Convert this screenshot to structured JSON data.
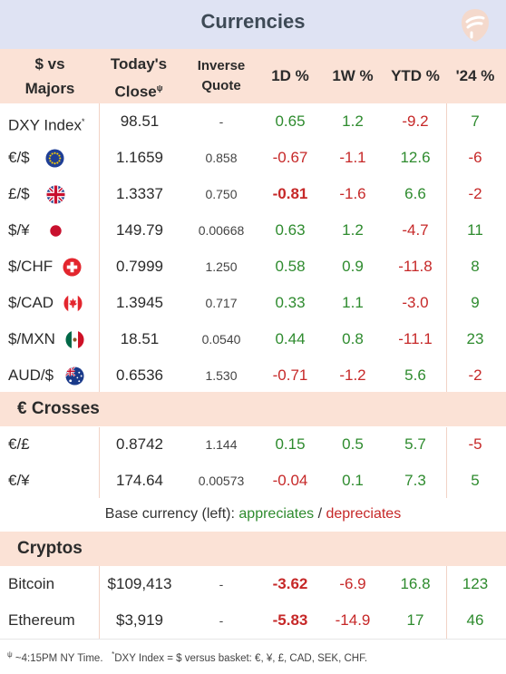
{
  "title": "Currencies",
  "header": {
    "pair_line1": "$ vs",
    "pair_line2": "Majors",
    "close_line1": "Today's",
    "close_line2": "Close",
    "close_sup": "ψ",
    "inverse_line1": "Inverse",
    "inverse_line2": "Quote",
    "d1": "1D %",
    "w1": "1W %",
    "ytd": "YTD %",
    "y24": "'24 %"
  },
  "majors": [
    {
      "name": "DXY Index",
      "sup": "*",
      "close": "98.51",
      "inverse": "-",
      "d1": "0.65",
      "w1": "1.2",
      "ytd": "-9.2",
      "y24": "7",
      "flag": ""
    },
    {
      "name": "€/$",
      "close": "1.1659",
      "inverse": "0.858",
      "d1": "-0.67",
      "w1": "-1.1",
      "ytd": "12.6",
      "y24": "-6",
      "flag": "eu-flag-icon"
    },
    {
      "name": "£/$",
      "close": "1.3337",
      "inverse": "0.750",
      "d1": "-0.81",
      "w1": "-1.6",
      "ytd": "6.6",
      "y24": "-2",
      "flag": "uk-flag-icon"
    },
    {
      "name": "$/¥",
      "close": "149.79",
      "inverse": "0.00668",
      "d1": "0.63",
      "w1": "1.2",
      "ytd": "-4.7",
      "y24": "11",
      "flag": "japan-flag-icon"
    },
    {
      "name": "$/CHF",
      "close": "0.7999",
      "inverse": "1.250",
      "d1": "0.58",
      "w1": "0.9",
      "ytd": "-11.8",
      "y24": "8",
      "flag": "swiss-flag-icon"
    },
    {
      "name": "$/CAD",
      "close": "1.3945",
      "inverse": "0.717",
      "d1": "0.33",
      "w1": "1.1",
      "ytd": "-3.0",
      "y24": "9",
      "flag": "canada-flag-icon"
    },
    {
      "name": "$/MXN",
      "close": "18.51",
      "inverse": "0.0540",
      "d1": "0.44",
      "w1": "0.8",
      "ytd": "-11.1",
      "y24": "23",
      "flag": "mexico-flag-icon"
    },
    {
      "name": "AUD/$",
      "close": "0.6536",
      "inverse": "1.530",
      "d1": "-0.71",
      "w1": "-1.2",
      "ytd": "5.6",
      "y24": "-2",
      "flag": "australia-flag-icon"
    }
  ],
  "crosses_title": "€ Crosses",
  "crosses": [
    {
      "name": "€/£",
      "close": "0.8742",
      "inverse": "1.144",
      "d1": "0.15",
      "w1": "0.5",
      "ytd": "5.7",
      "y24": "-5"
    },
    {
      "name": "€/¥",
      "close": "174.64",
      "inverse": "0.00573",
      "d1": "-0.04",
      "w1": "0.1",
      "ytd": "7.3",
      "y24": "5"
    }
  ],
  "legend": {
    "prefix": "Base currency (left):",
    "up": "appreciates",
    "sep": "/",
    "down": "depreciates"
  },
  "cryptos_title": "Cryptos",
  "cryptos": [
    {
      "name": "Bitcoin",
      "close": "$109,413",
      "inverse": "-",
      "d1": "-3.62",
      "w1": "-6.9",
      "ytd": "16.8",
      "y24": "123"
    },
    {
      "name": "Ethereum",
      "close": "$3,919",
      "inverse": "-",
      "d1": "-5.83",
      "w1": "-14.9",
      "ytd": "17",
      "y24": "46"
    }
  ],
  "footer": {
    "sup1": "ψ",
    "note1": "~4:15PM NY Time.",
    "sup2": "*",
    "note2": "DXY Index = $ versus basket: €, ¥, £, CAD, SEK, CHF."
  },
  "colors": {
    "positive": "#2e8b2e",
    "negative": "#c62828",
    "header_bg": "#fbe2d6",
    "title_bg": "#dfe3f3"
  }
}
